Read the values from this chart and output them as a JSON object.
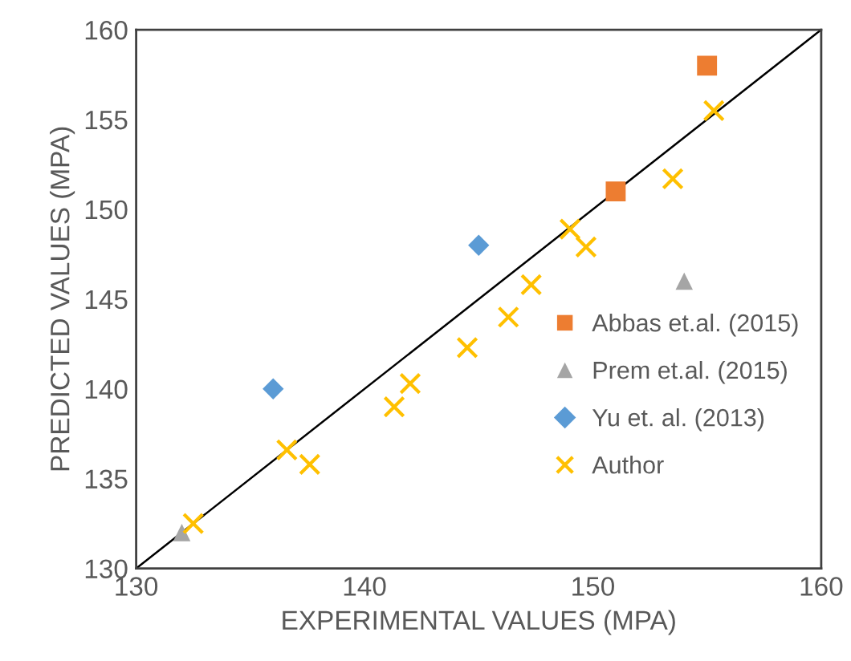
{
  "chart_data": {
    "type": "scatter",
    "xlabel": "EXPERIMENTAL VALUES (MPA)",
    "ylabel": "PREDICTED VALUES (MPA)",
    "xlim": [
      130,
      160
    ],
    "xticks": [
      130,
      140,
      150,
      160
    ],
    "ylim": [
      130,
      160
    ],
    "yticks": [
      130,
      135,
      140,
      145,
      150,
      155,
      160
    ],
    "grid": false,
    "legend": "right",
    "series": [
      {
        "type": "line",
        "color": "#000000",
        "marker": "none",
        "line_style": "solid",
        "x": [
          130,
          160
        ],
        "values": [
          130,
          160
        ]
      },
      {
        "name": "Abbas et.al. (2015)",
        "color": "#ed7d31",
        "marker": "square",
        "x": [
          155,
          151
        ],
        "values": [
          158,
          151
        ]
      },
      {
        "name": "Prem et.al. (2015)",
        "color": "#a5a5a5",
        "marker": "triangle",
        "x": [
          154,
          132
        ],
        "values": [
          146,
          132
        ]
      },
      {
        "name": "Yu et. al. (2013)",
        "color": "#5b9bd5",
        "marker": "diamond",
        "x": [
          145,
          136
        ],
        "values": [
          148,
          140
        ]
      },
      {
        "name": "Author",
        "color": "#ffc000",
        "marker": "cross",
        "x": [
          155.3,
          153.5,
          149.0,
          149.7,
          147.3,
          146.3,
          144.5,
          142.0,
          141.3,
          136.6,
          137.6,
          132.5
        ],
        "values": [
          155.5,
          151.7,
          148.9,
          147.9,
          145.8,
          144.0,
          142.3,
          140.3,
          139.0,
          136.6,
          135.8,
          132.5
        ]
      }
    ]
  }
}
